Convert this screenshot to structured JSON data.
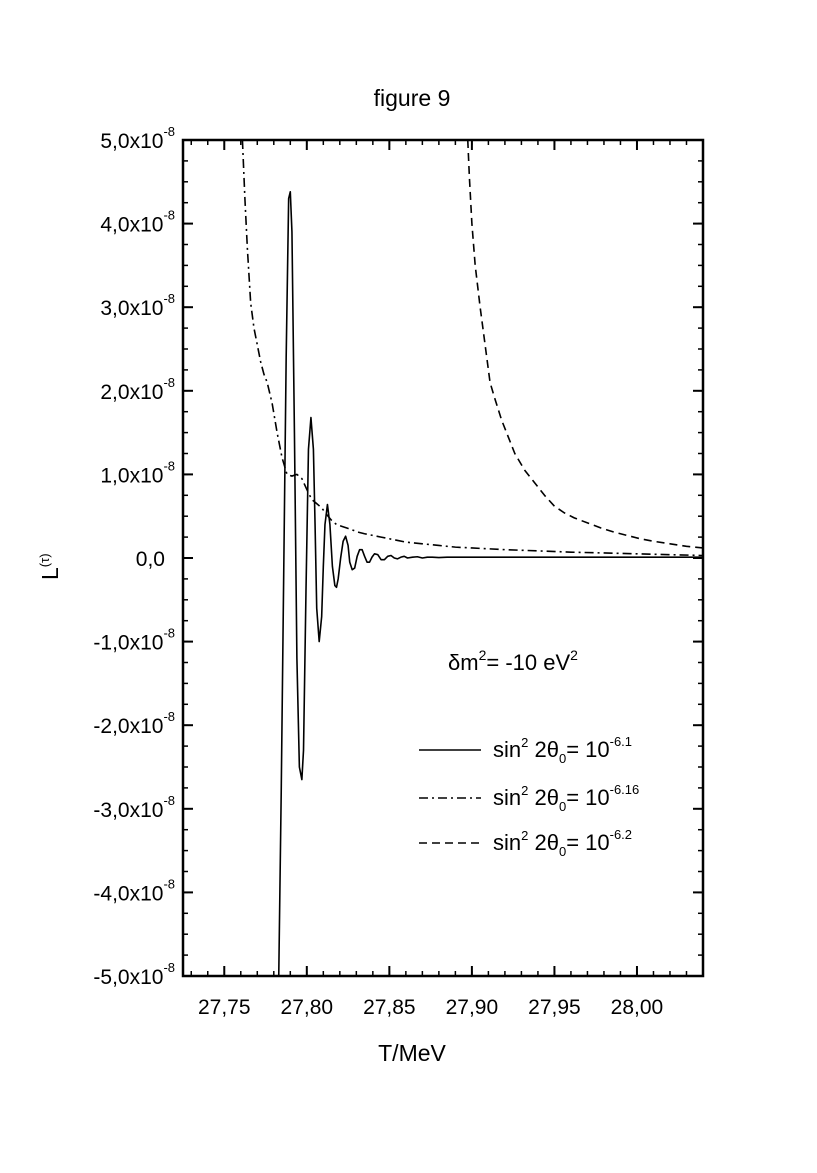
{
  "chart_data": {
    "type": "line",
    "title": "figure 9",
    "xlabel": "T/MeV",
    "ylabel": "L",
    "ylabel_sup": "(τ)",
    "xlim": [
      27.725,
      28.04
    ],
    "ylim": [
      -5e-08,
      5e-08
    ],
    "x_ticks": [
      27.75,
      27.8,
      27.85,
      27.9,
      27.95,
      28.0
    ],
    "x_tick_labels": [
      "27,75",
      "27,80",
      "27,85",
      "27,90",
      "27,95",
      "28,00"
    ],
    "y_ticks": [
      {
        "value": 5e-08,
        "mant": "5,0x10",
        "exp": "-8"
      },
      {
        "value": 4e-08,
        "mant": "4,0x10",
        "exp": "-8"
      },
      {
        "value": 3e-08,
        "mant": "3,0x10",
        "exp": "-8"
      },
      {
        "value": 2e-08,
        "mant": "2,0x10",
        "exp": "-8"
      },
      {
        "value": 1e-08,
        "mant": "1,0x10",
        "exp": "-8"
      },
      {
        "value": 0,
        "mant": "0,0",
        "exp": ""
      },
      {
        "value": -1e-08,
        "mant": "-1,0x10",
        "exp": "-8"
      },
      {
        "value": -2e-08,
        "mant": "-2,0x10",
        "exp": "-8"
      },
      {
        "value": -3e-08,
        "mant": "-3,0x10",
        "exp": "-8"
      },
      {
        "value": -4e-08,
        "mant": "-4,0x10",
        "exp": "-8"
      },
      {
        "value": -5e-08,
        "mant": "-5,0x10",
        "exp": "-8"
      }
    ],
    "annotation": {
      "pre": "δm",
      "sup1": "2",
      "mid": "= -10 eV",
      "sup2": "2"
    },
    "legend_placement": "lower-right",
    "grid": false,
    "series": [
      {
        "legend": {
          "a": "sin",
          "b": "2",
          "c": " 2θ",
          "d": "0",
          "e": "= 10",
          "f": "-6.1"
        },
        "style": "solid",
        "x": [
          27.783,
          27.7845,
          27.786,
          27.7875,
          27.789,
          27.79,
          27.791,
          27.7925,
          27.794,
          27.7955,
          27.797,
          27.798,
          27.7995,
          27.801,
          27.8025,
          27.804,
          27.805,
          27.806,
          27.8075,
          27.809,
          27.81,
          27.811,
          27.8125,
          27.814,
          27.8155,
          27.817,
          27.818,
          27.819,
          27.8205,
          27.822,
          27.8235,
          27.825,
          27.826,
          27.8275,
          27.829,
          27.8305,
          27.832,
          27.8335,
          27.835,
          27.8365,
          27.838,
          27.8395,
          27.841,
          27.843,
          27.845,
          27.847,
          27.849,
          27.851,
          27.853,
          27.855,
          27.857,
          27.859,
          27.861,
          27.864,
          27.867,
          27.87,
          27.873,
          27.876,
          27.88,
          27.885,
          27.89,
          27.895,
          27.9,
          27.95,
          28.0,
          28.04
        ],
        "y": [
          -5e-08,
          -2.8e-08,
          -2e-09,
          2.4e-08,
          4.3e-08,
          4.38e-08,
          3.9e-08,
          1.5e-08,
          -1.2e-08,
          -2.5e-08,
          -2.65e-08,
          -2.3e-08,
          -4e-09,
          1.3e-08,
          1.68e-08,
          1.3e-08,
          4e-09,
          -6e-09,
          -1e-08,
          -7e-09,
          -1e-09,
          4e-09,
          6.4e-09,
          4e-09,
          -1e-09,
          -3.3e-09,
          -3.5e-09,
          -2.5e-09,
          0.0,
          2e-09,
          2.6e-09,
          1.5e-09,
          -5e-10,
          -1.4e-09,
          -1.2e-09,
          2e-10,
          1e-09,
          1e-09,
          2e-10,
          -5e-10,
          -5e-10,
          1e-10,
          5e-10,
          4e-10,
          -2e-10,
          -2e-10,
          2e-10,
          3e-10,
          0.0,
          -1e-10,
          1e-10,
          2e-10,
          0.0,
          1e-10,
          1.5e-10,
          0.0,
          1e-10,
          1e-10,
          5e-11,
          1e-10,
          1e-10,
          1e-10,
          1e-10,
          1e-10,
          1e-10,
          1e-10
        ]
      },
      {
        "legend": {
          "a": "sin",
          "b": "2",
          "c": " 2θ",
          "d": "0",
          "e": "= 10",
          "f": "-6.16"
        },
        "style": "dashdot",
        "x": [
          27.761,
          27.7625,
          27.764,
          27.766,
          27.768,
          27.77,
          27.772,
          27.774,
          27.776,
          27.779,
          27.782,
          27.785,
          27.788,
          27.791,
          27.794,
          27.797,
          27.8,
          27.803,
          27.806,
          27.809,
          27.812,
          27.815,
          27.818,
          27.821,
          27.824,
          27.827,
          27.831,
          27.835,
          27.84,
          27.845,
          27.85,
          27.855,
          27.86,
          27.87,
          27.88,
          27.89,
          27.9,
          27.92,
          27.94,
          27.96,
          27.98,
          28.0,
          28.02,
          28.04
        ],
        "y": [
          5e-08,
          4.3e-08,
          3.7e-08,
          3.05e-08,
          2.75e-08,
          2.55e-08,
          2.35e-08,
          2.2e-08,
          2.1e-08,
          1.85e-08,
          1.5e-08,
          1.2e-08,
          1e-08,
          9.8e-09,
          1e-08,
          9.5e-09,
          8.2e-09,
          7e-09,
          6.5e-09,
          6e-09,
          5.2e-09,
          4.5e-09,
          4e-09,
          3.8e-09,
          3.6e-09,
          3.4e-09,
          3.1e-09,
          2.9e-09,
          2.7e-09,
          2.5e-09,
          2.3e-09,
          2.1e-09,
          1.9e-09,
          1.7e-09,
          1.5e-09,
          1.3e-09,
          1.2e-09,
          1e-09,
          8.5e-10,
          7e-10,
          6e-10,
          5e-10,
          4e-10,
          3e-10
        ]
      },
      {
        "legend": {
          "a": "sin",
          "b": "2",
          "c": " 2θ",
          "d": "0",
          "e": "= 10",
          "f": "-6.2"
        },
        "style": "dashed",
        "x": [
          27.8975,
          27.8985,
          27.9,
          27.902,
          27.905,
          27.908,
          27.911,
          27.914,
          27.918,
          27.922,
          27.926,
          27.932,
          27.938,
          27.944,
          27.95,
          27.956,
          27.962,
          27.97,
          27.978,
          27.986,
          27.994,
          28.002,
          28.01,
          28.02,
          28.03,
          28.04
        ],
        "y": [
          5e-08,
          4.55e-08,
          4e-08,
          3.5e-08,
          3e-08,
          2.55e-08,
          2.1e-08,
          1.9e-08,
          1.65e-08,
          1.45e-08,
          1.25e-08,
          1.05e-08,
          9e-09,
          7.5e-09,
          6.2e-09,
          5.4e-09,
          4.8e-09,
          4.2e-09,
          3.6e-09,
          3.1e-09,
          2.7e-09,
          2.3e-09,
          2e-09,
          1.7e-09,
          1.4e-09,
          1.2e-09
        ]
      }
    ]
  }
}
